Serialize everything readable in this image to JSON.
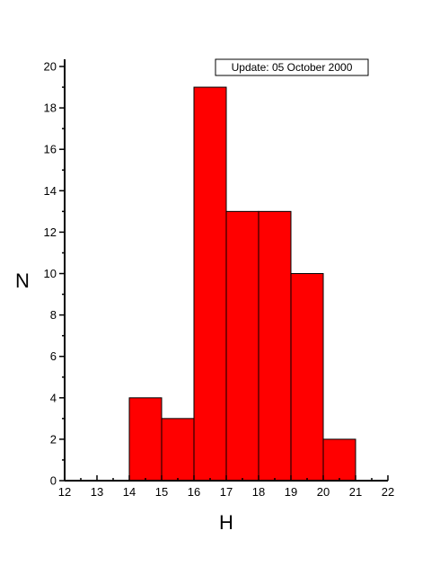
{
  "chart_data": {
    "type": "bar",
    "title": "",
    "xlabel": "H",
    "ylabel": "N",
    "annotation": "Update: 05 October 2000",
    "bins": [
      {
        "start": 14,
        "end": 15,
        "value": 4
      },
      {
        "start": 15,
        "end": 16,
        "value": 3
      },
      {
        "start": 16,
        "end": 17,
        "value": 19
      },
      {
        "start": 17,
        "end": 18,
        "value": 13
      },
      {
        "start": 18,
        "end": 19,
        "value": 13
      },
      {
        "start": 19,
        "end": 20,
        "value": 10
      },
      {
        "start": 20,
        "end": 21,
        "value": 2
      }
    ],
    "xlim": [
      12,
      22
    ],
    "ylim": [
      0,
      20
    ],
    "x_ticks": [
      "12",
      "13",
      "14",
      "15",
      "16",
      "17",
      "18",
      "19",
      "20",
      "21",
      "22"
    ],
    "y_ticks": [
      "0",
      "2",
      "4",
      "6",
      "8",
      "10",
      "12",
      "14",
      "16",
      "18",
      "20"
    ],
    "grid": false,
    "colors": {
      "bar_fill": "#ff0000",
      "bar_stroke": "#000000",
      "axis": "#000000"
    }
  }
}
